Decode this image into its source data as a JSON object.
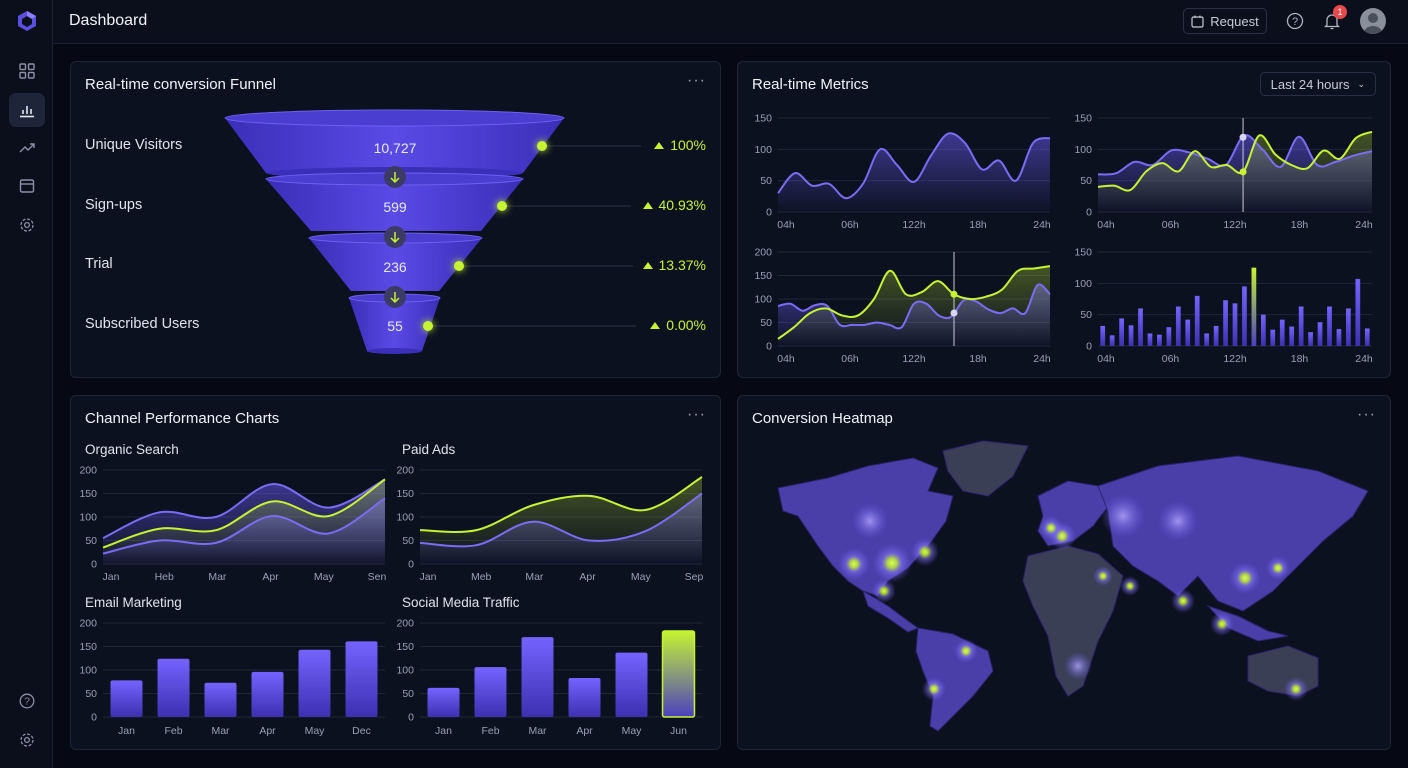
{
  "header": {
    "title": "Dashboard",
    "request_label": "Request",
    "notification_count": "1"
  },
  "sidebar": {
    "items": [
      {
        "icon": "grid-icon"
      },
      {
        "icon": "bar-chart-icon",
        "active": true
      },
      {
        "icon": "trend-icon"
      },
      {
        "icon": "calendar-icon"
      },
      {
        "icon": "gear-icon"
      }
    ],
    "bottom": [
      {
        "icon": "help-icon"
      },
      {
        "icon": "gear-icon"
      }
    ]
  },
  "colors": {
    "accent": "#6b5cf6",
    "lime": "#c6f432",
    "bg": "#060914",
    "panel": "#0c1120"
  },
  "funnel": {
    "title": "Real-time conversion Funnel",
    "stages": [
      {
        "label": "Unique Visitors",
        "value": "10,727",
        "pct": "100%"
      },
      {
        "label": "Sign-ups",
        "value": "599",
        "pct": "40.93%"
      },
      {
        "label": "Trial",
        "value": "236",
        "pct": "13.37%"
      },
      {
        "label": "Subscribed Users",
        "value": "55",
        "pct": "0.00%"
      }
    ]
  },
  "metrics": {
    "title": "Real-time Metrics",
    "range": "Last 24 hours"
  },
  "channel": {
    "title": "Channel Performance Charts"
  },
  "heatmap": {
    "title": "Conversion Heatmap"
  },
  "chart_data": [
    {
      "id": "m1",
      "type": "area",
      "xlabels": [
        "04h",
        "06h",
        "122h",
        "18h",
        "24h"
      ],
      "ylim": [
        0,
        150
      ],
      "yticks": [
        0,
        50,
        100,
        150
      ],
      "grid": true,
      "series": [
        {
          "color": "#7b6cf6",
          "values": [
            30,
            62,
            42,
            45,
            22,
            45,
            100,
            75,
            48,
            90,
            125,
            110,
            68,
            82,
            50,
            110,
            118
          ]
        }
      ]
    },
    {
      "id": "m2",
      "type": "area",
      "xlabels": [
        "04h",
        "06h",
        "122h",
        "18h",
        "24h"
      ],
      "ylim": [
        0,
        150
      ],
      "yticks": [
        0,
        50,
        100,
        150
      ],
      "grid": true,
      "hover_index": 9,
      "series": [
        {
          "color": "#7b6cf6",
          "values": [
            60,
            62,
            80,
            75,
            98,
            95,
            85,
            75,
            122,
            100,
            72,
            120,
            75,
            80,
            90,
            97
          ]
        },
        {
          "color": "#c6f432",
          "values": [
            40,
            42,
            35,
            65,
            78,
            65,
            97,
            72,
            75,
            64,
            122,
            92,
            75,
            70,
            98,
            85,
            118,
            128
          ]
        }
      ]
    },
    {
      "id": "m3",
      "type": "area",
      "xlabels": [
        "04h",
        "06h",
        "122h",
        "18h",
        "24h"
      ],
      "ylim": [
        0,
        200
      ],
      "yticks": [
        0,
        50,
        100,
        150,
        200
      ],
      "grid": true,
      "hover_index": 11,
      "series": [
        {
          "color": "#7b6cf6",
          "values": [
            85,
            90,
            75,
            87,
            85,
            45,
            45,
            45,
            50,
            45,
            40,
            90,
            90,
            65,
            62,
            97,
            95,
            78,
            70,
            80,
            70,
            130,
            110
          ]
        },
        {
          "color": "#c6f432",
          "values": [
            15,
            40,
            70,
            80,
            65,
            65,
            100,
            160,
            110,
            115,
            138,
            110,
            100,
            105,
            120,
            160,
            165,
            170
          ]
        }
      ]
    },
    {
      "id": "m4",
      "type": "bar",
      "xlabels": [
        "04h",
        "06h",
        "122h",
        "18h",
        "24h"
      ],
      "ylim": [
        0,
        150
      ],
      "yticks": [
        0,
        50,
        100,
        150
      ],
      "grid": true,
      "highlight_index": 16,
      "values": [
        32,
        17,
        44,
        33,
        60,
        20,
        18,
        30,
        63,
        42,
        80,
        20,
        32,
        73,
        68,
        95,
        125,
        50,
        26,
        42,
        31,
        63,
        22,
        38,
        63,
        27,
        60,
        107,
        28
      ]
    },
    {
      "id": "c1",
      "title": "Organic Search",
      "type": "area",
      "xlabels": [
        "Jan",
        "Heb",
        "Mar",
        "Apr",
        "May",
        "Sen"
      ],
      "ylim": [
        0,
        200
      ],
      "yticks": [
        0,
        50,
        100,
        150,
        200
      ],
      "grid": true,
      "series": [
        {
          "color": "#7b6cf6",
          "values": [
            55,
            110,
            100,
            170,
            120,
            180
          ]
        },
        {
          "color": "#7b6cf6",
          "values": [
            22,
            50,
            45,
            102,
            65,
            140
          ]
        },
        {
          "color": "#c6f432",
          "values": [
            35,
            75,
            72,
            133,
            102,
            180
          ]
        }
      ]
    },
    {
      "id": "c2",
      "title": "Paid Ads",
      "type": "area",
      "xlabels": [
        "Jan",
        "Meb",
        "Mar",
        "Apr",
        "May",
        "Sep"
      ],
      "ylim": [
        0,
        200
      ],
      "yticks": [
        0,
        50,
        100,
        150,
        200
      ],
      "grid": true,
      "series": [
        {
          "color": "#7b6cf6",
          "values": [
            45,
            40,
            90,
            50,
            70,
            150
          ]
        },
        {
          "color": "#c6f432",
          "values": [
            72,
            72,
            125,
            145,
            115,
            185
          ]
        }
      ]
    },
    {
      "id": "c3",
      "title": "Email Marketing",
      "type": "bar",
      "categories": [
        "Jan",
        "Feb",
        "Mar",
        "Apr",
        "May",
        "Dec"
      ],
      "ylim": [
        0,
        200
      ],
      "yticks": [
        0,
        50,
        100,
        150,
        200
      ],
      "grid": true,
      "values": [
        78,
        124,
        73,
        96,
        143,
        161
      ]
    },
    {
      "id": "c4",
      "title": "Social Media Traffic",
      "type": "bar",
      "categories": [
        "Jan",
        "Feb",
        "Mar",
        "Apr",
        "May",
        "Jun"
      ],
      "ylim": [
        0,
        200
      ],
      "yticks": [
        0,
        50,
        100,
        150,
        200
      ],
      "grid": true,
      "highlight_index": 5,
      "values": [
        62,
        106,
        170,
        83,
        137,
        183
      ]
    }
  ]
}
